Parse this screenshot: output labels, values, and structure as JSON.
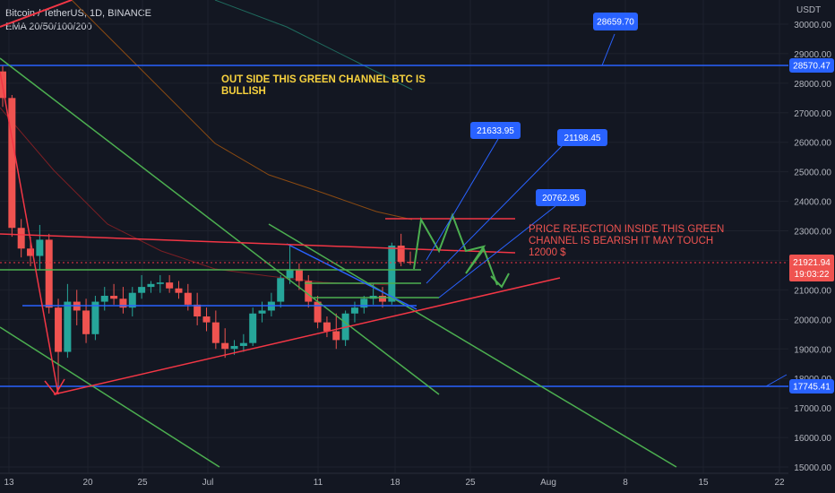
{
  "header": {
    "symbol": "Bitcoin / TetherUS, 1D, BINANCE",
    "indicator": "EMA 20/50/100/200"
  },
  "axis": {
    "currency": "USDT",
    "current_price": "21921.94",
    "countdown": "19:03:22"
  },
  "annotations": {
    "bullish_note": "OUT SIDE THIS GREEN CHANNEL BTC IS BULLISH",
    "bearish_note": "PRICE REJECTION INSIDE THIS GREEN CHANNEL IS BEARISH IT MAY TOUCH 12000 $",
    "targets": [
      "21633.95",
      "21198.45",
      "20762.95",
      "28659.70"
    ],
    "levels": [
      "28570.47",
      "17745.41"
    ]
  },
  "colors": {
    "background": "#131722",
    "up": "#26a69a",
    "down": "#ef5350",
    "blue_line": "#2962ff",
    "green_line": "#4caf50",
    "red_line": "#f23645",
    "yellow_text": "#f7d23e",
    "red_text": "#ef5350",
    "label_bg": "#2962ff"
  },
  "chart_data": {
    "type": "candlestick",
    "title": "Bitcoin / TetherUS, 1D, BINANCE",
    "y_unit": "USDT",
    "ylim": [
      15000,
      31000
    ],
    "y_ticks": [
      "15000.00",
      "16000.00",
      "17000.00",
      "18000.00",
      "19000.00",
      "20000.00",
      "21000.00",
      "22000.00",
      "23000.00",
      "24000.00",
      "25000.00",
      "26000.00",
      "27000.00",
      "28000.00",
      "29000.00",
      "30000.00"
    ],
    "x_ticks": [
      "13",
      "20",
      "25",
      "Jul",
      "11",
      "18",
      "25",
      "Aug",
      "8",
      "15",
      "22"
    ],
    "candles_ohlc": [
      [
        28400,
        28600,
        27200,
        27500
      ],
      [
        27500,
        27600,
        22800,
        23100
      ],
      [
        23100,
        23400,
        22100,
        22400
      ],
      [
        22400,
        22800,
        21800,
        22150
      ],
      [
        22150,
        23200,
        21700,
        22700
      ],
      [
        22700,
        22900,
        20200,
        20400
      ],
      [
        20400,
        20700,
        17600,
        18900
      ],
      [
        18900,
        21200,
        18700,
        20600
      ],
      [
        20600,
        21000,
        19800,
        20300
      ],
      [
        20300,
        20700,
        19200,
        19500
      ],
      [
        19500,
        20800,
        19300,
        20600
      ],
      [
        20600,
        21100,
        20300,
        20800
      ],
      [
        20800,
        21200,
        20500,
        20700
      ],
      [
        20700,
        21100,
        20200,
        20400
      ],
      [
        20400,
        21100,
        20100,
        20900
      ],
      [
        20900,
        21500,
        20700,
        21100
      ],
      [
        21100,
        21300,
        20900,
        21200
      ],
      [
        21200,
        21500,
        20900,
        21250
      ],
      [
        21250,
        21500,
        20900,
        21050
      ],
      [
        21050,
        21300,
        20700,
        20900
      ],
      [
        20900,
        21200,
        20300,
        20500
      ],
      [
        20500,
        20900,
        19800,
        20100
      ],
      [
        20100,
        20400,
        19600,
        19900
      ],
      [
        19900,
        20300,
        19000,
        19200
      ],
      [
        19200,
        19700,
        18700,
        19000
      ],
      [
        19000,
        19300,
        18800,
        19100
      ],
      [
        19100,
        19500,
        18900,
        19200
      ],
      [
        19200,
        20400,
        19100,
        20200
      ],
      [
        20200,
        20600,
        19900,
        20300
      ],
      [
        20300,
        20900,
        20100,
        20600
      ],
      [
        20600,
        21500,
        20400,
        21400
      ],
      [
        21400,
        22500,
        21200,
        21700
      ],
      [
        21700,
        21900,
        21000,
        21300
      ],
      [
        21300,
        21500,
        20400,
        20600
      ],
      [
        20600,
        20800,
        19700,
        19900
      ],
      [
        19900,
        20100,
        19400,
        19600
      ],
      [
        19600,
        20200,
        19000,
        19300
      ],
      [
        19300,
        20300,
        19100,
        20200
      ],
      [
        20200,
        20600,
        19900,
        20400
      ],
      [
        20400,
        20800,
        20200,
        20700
      ],
      [
        20700,
        21200,
        20500,
        20800
      ],
      [
        20800,
        21100,
        20400,
        20600
      ],
      [
        20600,
        22600,
        20500,
        22500
      ],
      [
        22500,
        22900,
        21800,
        21950
      ],
      [
        21950,
        22300,
        21850,
        21921.94
      ]
    ],
    "horizontal_levels": [
      28570.47,
      17745.41
    ],
    "target_labels": [
      21633.95,
      21198.45,
      20762.95,
      28659.7
    ],
    "ema_periods": [
      20,
      50,
      100,
      200
    ]
  }
}
